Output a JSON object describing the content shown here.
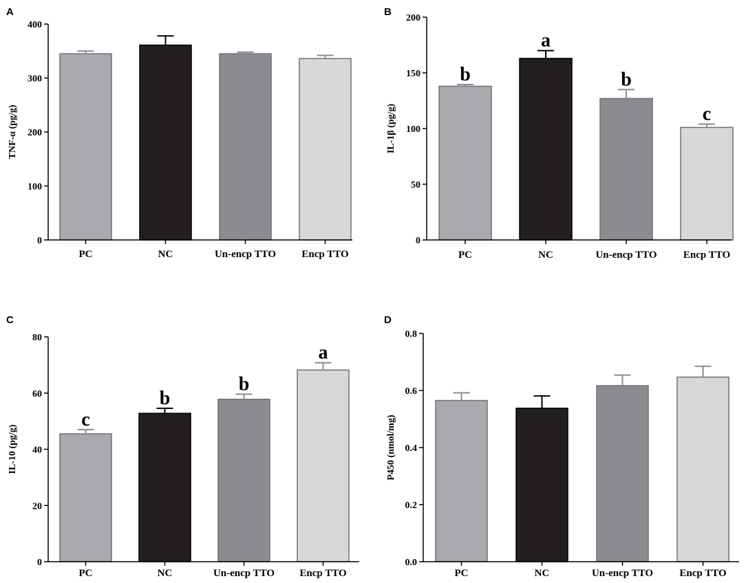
{
  "chart_data": [
    {
      "panel": "A",
      "type": "bar",
      "categories": [
        "PC",
        "NC",
        "Un-encp TTO",
        "Encp TTO"
      ],
      "values": [
        345,
        361,
        345,
        336
      ],
      "errors": [
        5,
        17,
        3,
        6
      ],
      "significance": [
        "",
        "",
        "",
        ""
      ],
      "ylabel": "TNF-α (pg/g)",
      "ylim": [
        0,
        400
      ],
      "yticks": [
        "0",
        "100",
        "200",
        "300",
        "400"
      ],
      "colors": [
        "#a9aaae",
        "#231f20",
        "#8b8c8f",
        "#d7d8da"
      ]
    },
    {
      "panel": "B",
      "type": "bar",
      "categories": [
        "PC",
        "NC",
        "Un-encp TTO",
        "Encp TTO"
      ],
      "values": [
        138,
        163,
        127,
        101
      ],
      "errors": [
        1.5,
        7,
        8,
        3
      ],
      "significance": [
        "b",
        "a",
        "b",
        "c"
      ],
      "ylabel": "IL-1β (pg/g)",
      "ylim": [
        0,
        200
      ],
      "yticks": [
        "0",
        "50",
        "100",
        "150",
        "200"
      ],
      "colors": [
        "#a9aaae",
        "#231f20",
        "#8b8c8f",
        "#d7d8da"
      ]
    },
    {
      "panel": "C",
      "type": "bar",
      "categories": [
        "PC",
        "NC",
        "Un-encp TTO",
        "Encp TTO"
      ],
      "values": [
        45.5,
        52.8,
        57.8,
        68.2
      ],
      "errors": [
        1.5,
        1.8,
        1.8,
        2.6
      ],
      "significance": [
        "c",
        "b",
        "b",
        "a"
      ],
      "ylabel": "IL-10 (pg/g)",
      "ylim": [
        0,
        80
      ],
      "yticks": [
        "0",
        "20",
        "40",
        "60",
        "80"
      ],
      "colors": [
        "#a9aaae",
        "#231f20",
        "#8b8c8f",
        "#d7d8da"
      ]
    },
    {
      "panel": "D",
      "type": "bar",
      "categories": [
        "PC",
        "NC",
        "Un-encp TTO",
        "Encp TTO"
      ],
      "values": [
        0.565,
        0.538,
        0.617,
        0.647
      ],
      "errors": [
        0.027,
        0.043,
        0.037,
        0.038
      ],
      "significance": [
        "",
        "",
        "",
        ""
      ],
      "ylabel": "P450 (nmol/mg)",
      "ylim": [
        0,
        0.8
      ],
      "yticks": [
        "0.0",
        "0.2",
        "0.4",
        "0.6",
        "0.8"
      ],
      "colors": [
        "#a9aaae",
        "#231f20",
        "#8b8c8f",
        "#d7d8da"
      ]
    }
  ]
}
